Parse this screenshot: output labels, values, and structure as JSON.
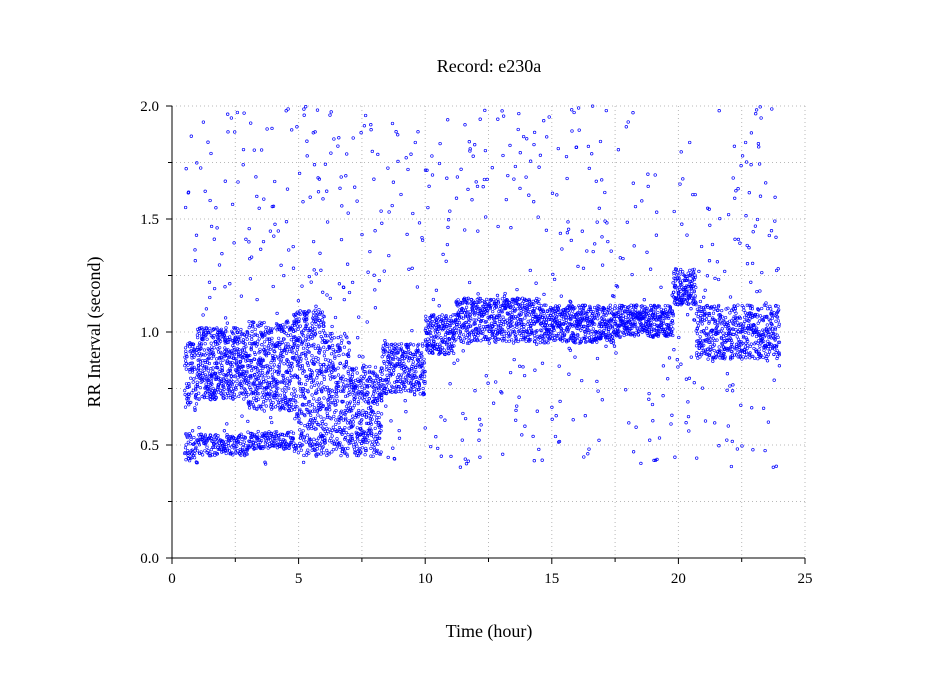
{
  "chart_data": {
    "type": "scatter",
    "title": "Record:  e230a",
    "xlabel": "Time (hour)",
    "ylabel": "RR Interval (second)",
    "xlim": [
      0,
      25
    ],
    "ylim": [
      0.0,
      2.0
    ],
    "x_ticks": [
      "0",
      "5",
      "10",
      "15",
      "20",
      "25"
    ],
    "y_ticks": [
      "0.0",
      "0.5",
      "1.0",
      "1.5",
      "2.0"
    ],
    "grid": true,
    "marker": "hollow-circle",
    "color": "#0000ff",
    "series_segments": [
      {
        "x_start": 0.5,
        "x_end": 1.0,
        "bands": [
          [
            0.42,
            0.55,
            0.6
          ],
          [
            0.65,
            0.95,
            1.0
          ]
        ]
      },
      {
        "x_start": 1.0,
        "x_end": 3.0,
        "bands": [
          [
            0.45,
            0.55,
            0.5
          ],
          [
            0.7,
            1.02,
            1.3
          ]
        ]
      },
      {
        "x_start": 3.0,
        "x_end": 4.8,
        "bands": [
          [
            0.48,
            0.56,
            0.5
          ],
          [
            0.65,
            1.05,
            1.5
          ]
        ]
      },
      {
        "x_start": 4.8,
        "x_end": 6.0,
        "bands": [
          [
            0.45,
            1.1,
            1.8
          ]
        ]
      },
      {
        "x_start": 6.0,
        "x_end": 7.0,
        "bands": [
          [
            0.45,
            1.0,
            1.6
          ]
        ]
      },
      {
        "x_start": 7.0,
        "x_end": 8.3,
        "bands": [
          [
            0.45,
            0.85,
            1.3
          ]
        ]
      },
      {
        "x_start": 8.3,
        "x_end": 10.0,
        "bands": [
          [
            0.72,
            0.95,
            0.9
          ]
        ]
      },
      {
        "x_start": 10.0,
        "x_end": 11.2,
        "bands": [
          [
            0.9,
            1.08,
            0.9
          ]
        ]
      },
      {
        "x_start": 11.2,
        "x_end": 14.5,
        "bands": [
          [
            0.95,
            1.15,
            1.2
          ]
        ]
      },
      {
        "x_start": 14.5,
        "x_end": 17.5,
        "bands": [
          [
            0.95,
            1.12,
            1.1
          ]
        ]
      },
      {
        "x_start": 17.5,
        "x_end": 19.8,
        "bands": [
          [
            0.98,
            1.12,
            1.0
          ]
        ]
      },
      {
        "x_start": 19.8,
        "x_end": 20.7,
        "bands": [
          [
            1.12,
            1.28,
            0.8
          ]
        ]
      },
      {
        "x_start": 20.7,
        "x_end": 24.0,
        "bands": [
          [
            0.88,
            1.12,
            1.2
          ]
        ]
      }
    ],
    "outlier_density": 0.035
  }
}
